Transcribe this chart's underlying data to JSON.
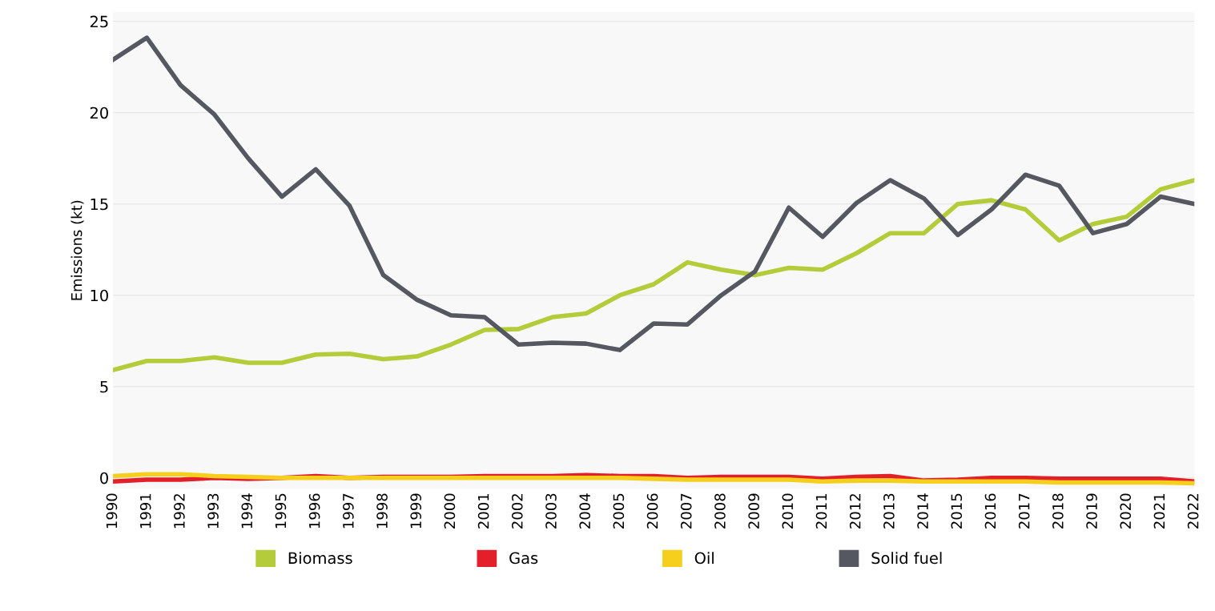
{
  "chart_data": {
    "type": "line",
    "ylabel": "Emissions (kt)",
    "categories": [
      "1990",
      "1991",
      "1992",
      "1993",
      "1994",
      "1995",
      "1996",
      "1997",
      "1998",
      "1999",
      "2000",
      "2001",
      "2002",
      "2003",
      "2004",
      "2005",
      "2006",
      "2007",
      "2008",
      "2009",
      "2010",
      "2011",
      "2012",
      "2013",
      "2014",
      "2015",
      "2016",
      "2017",
      "2018",
      "2019",
      "2020",
      "2021",
      "2022"
    ],
    "series": [
      {
        "name": "Biomass",
        "color": "#b5cc3a",
        "values": [
          5.9,
          6.4,
          6.4,
          6.6,
          6.3,
          6.3,
          6.75,
          6.8,
          6.5,
          6.65,
          7.3,
          8.1,
          8.15,
          8.8,
          9.0,
          10.0,
          10.6,
          11.8,
          11.4,
          11.1,
          11.5,
          11.4,
          12.3,
          13.4,
          13.4,
          15.0,
          15.2,
          14.7,
          13.0,
          13.9,
          14.3,
          15.8,
          16.3
        ]
      },
      {
        "name": "Gas",
        "color": "#e3202a",
        "values": [
          -0.2,
          -0.1,
          -0.1,
          0.0,
          -0.05,
          0.0,
          0.1,
          0.0,
          0.05,
          0.05,
          0.05,
          0.1,
          0.1,
          0.1,
          0.15,
          0.1,
          0.1,
          0.0,
          0.05,
          0.05,
          0.05,
          -0.05,
          0.05,
          0.1,
          -0.15,
          -0.1,
          0.0,
          0.0,
          -0.05,
          -0.05,
          -0.05,
          -0.05,
          -0.2
        ]
      },
      {
        "name": "Oil",
        "color": "#f5cf1c",
        "values": [
          0.1,
          0.2,
          0.2,
          0.1,
          0.05,
          0.0,
          0.0,
          0.0,
          0.0,
          0.0,
          0.0,
          0.0,
          0.0,
          0.0,
          0.0,
          0.0,
          -0.05,
          -0.1,
          -0.1,
          -0.1,
          -0.1,
          -0.2,
          -0.15,
          -0.15,
          -0.2,
          -0.2,
          -0.2,
          -0.2,
          -0.25,
          -0.25,
          -0.25,
          -0.25,
          -0.3
        ]
      },
      {
        "name": "Solid fuel",
        "color": "#555860",
        "values": [
          22.9,
          24.1,
          21.5,
          19.9,
          17.5,
          15.4,
          16.9,
          14.9,
          11.1,
          9.75,
          8.9,
          8.8,
          7.3,
          7.4,
          7.35,
          7.0,
          8.45,
          8.4,
          10.0,
          11.3,
          14.8,
          13.2,
          15.05,
          16.3,
          15.3,
          13.3,
          14.7,
          16.6,
          16.0,
          13.4,
          13.9,
          15.4,
          15.0
        ]
      }
    ],
    "ylim": [
      -0.6,
      25.5
    ],
    "yticks": [
      0,
      5,
      10,
      15,
      20,
      25
    ],
    "grid": "y",
    "legend": "bottom",
    "marker": "none",
    "line_style": "solid"
  }
}
